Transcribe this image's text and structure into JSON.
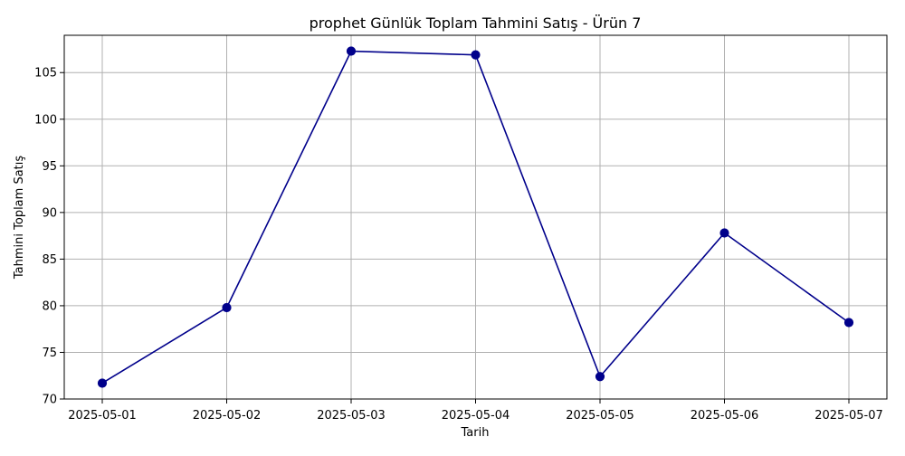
{
  "chart_data": {
    "type": "line",
    "title": "prophet Günlük Toplam Tahmini Satış - Ürün 7",
    "xlabel": "Tarih",
    "ylabel": "Tahmini Toplam Satış",
    "x": [
      "2025-05-01",
      "2025-05-02",
      "2025-05-03",
      "2025-05-04",
      "2025-05-05",
      "2025-05-06",
      "2025-05-07"
    ],
    "series": [
      {
        "values": [
          71.7,
          79.8,
          107.3,
          106.9,
          72.4,
          87.8,
          78.2
        ],
        "color": "#00008b",
        "marker": "circle"
      }
    ],
    "yticks": [
      70,
      75,
      80,
      85,
      90,
      95,
      100,
      105
    ],
    "ylim": [
      70,
      109
    ],
    "xlim": [
      "2025-05-01",
      "2025-05-07"
    ],
    "grid": true,
    "legend": "none"
  }
}
